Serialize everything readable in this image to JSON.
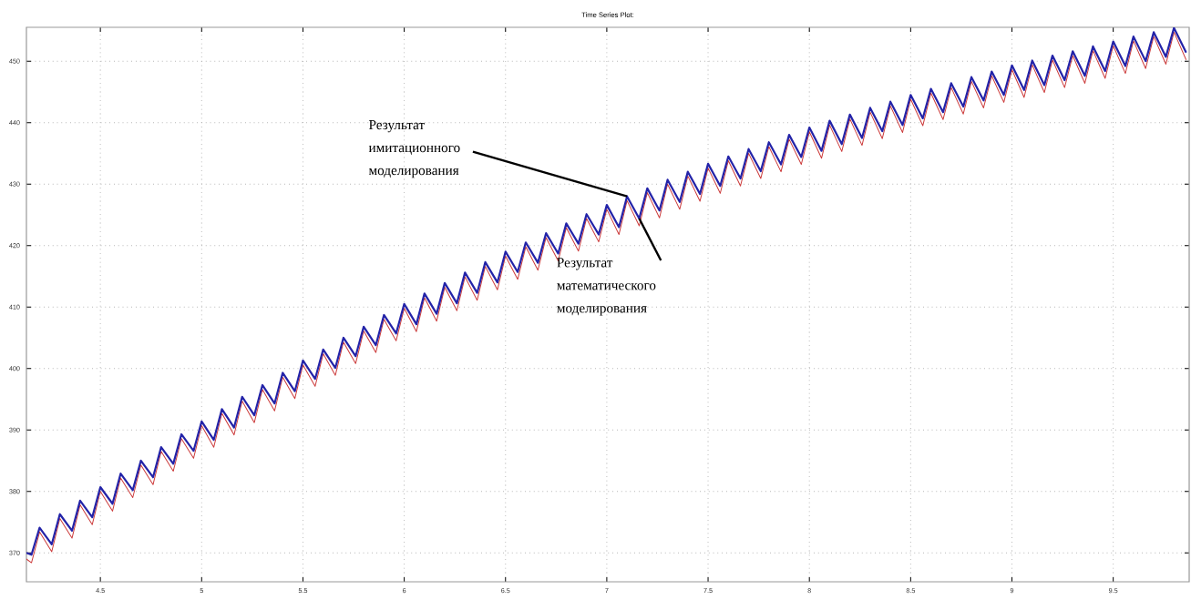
{
  "chart_data": {
    "type": "line",
    "title": "Time Series Plot:",
    "x": [
      4.135,
      4.16,
      4.2,
      4.26,
      4.3,
      4.36,
      4.4,
      4.46,
      4.5,
      4.56,
      4.6,
      4.66,
      4.7,
      4.76,
      4.8,
      4.86,
      4.9,
      4.96,
      5.0,
      5.06,
      5.1,
      5.16,
      5.2,
      5.26,
      5.3,
      5.36,
      5.4,
      5.46,
      5.5,
      5.56,
      5.6,
      5.66,
      5.7,
      5.76,
      5.8,
      5.86,
      5.9,
      5.96,
      6.0,
      6.06,
      6.1,
      6.16,
      6.2,
      6.26,
      6.3,
      6.36,
      6.4,
      6.46,
      6.5,
      6.56,
      6.6,
      6.66,
      6.7,
      6.76,
      6.8,
      6.86,
      6.9,
      6.96,
      7.0,
      7.06,
      7.1,
      7.16,
      7.2,
      7.26,
      7.3,
      7.36,
      7.4,
      7.46,
      7.5,
      7.56,
      7.6,
      7.66,
      7.7,
      7.76,
      7.8,
      7.86,
      7.9,
      7.96,
      8.0,
      8.06,
      8.1,
      8.16,
      8.2,
      8.26,
      8.3,
      8.36,
      8.4,
      8.46,
      8.5,
      8.56,
      8.6,
      8.66,
      8.7,
      8.76,
      8.8,
      8.86,
      8.9,
      8.96,
      9.0,
      9.06,
      9.1,
      9.16,
      9.2,
      9.26,
      9.3,
      9.36,
      9.4,
      9.46,
      9.5,
      9.56,
      9.6,
      9.66,
      9.7,
      9.76,
      9.8,
      9.86
    ],
    "series": [
      {
        "color": "#2323a8",
        "values": [
          370.0,
          369.7,
          374.1,
          371.4,
          376.3,
          373.6,
          378.5,
          375.8,
          380.7,
          378.0,
          382.9,
          380.2,
          385.0,
          382.3,
          387.2,
          384.5,
          389.3,
          386.6,
          391.4,
          388.4,
          393.4,
          390.4,
          395.4,
          392.4,
          397.3,
          394.3,
          399.3,
          396.3,
          401.3,
          398.3,
          403.1,
          400.1,
          405.0,
          402.0,
          406.8,
          403.8,
          408.7,
          405.7,
          410.5,
          407.2,
          412.2,
          408.9,
          413.9,
          410.6,
          415.6,
          412.3,
          417.3,
          414.0,
          419.0,
          415.7,
          420.5,
          417.2,
          422.0,
          418.7,
          423.6,
          420.3,
          425.1,
          421.8,
          426.6,
          423.0,
          428.0,
          424.4,
          429.3,
          425.7,
          430.7,
          427.1,
          432.0,
          428.4,
          433.3,
          429.7,
          434.5,
          430.9,
          435.7,
          432.1,
          436.8,
          433.2,
          438.0,
          434.4,
          439.2,
          435.4,
          440.3,
          436.5,
          441.3,
          437.5,
          442.4,
          438.6,
          443.4,
          439.6,
          444.5,
          440.7,
          445.5,
          441.7,
          446.4,
          442.6,
          447.4,
          443.6,
          448.3,
          444.5,
          449.3,
          445.3,
          450.1,
          446.1,
          450.9,
          446.9,
          451.6,
          447.6,
          452.4,
          448.4,
          453.2,
          449.2,
          454.0,
          450.0,
          454.7,
          450.7,
          455.4,
          451.4
        ]
      },
      {
        "color": "#cc3b3b",
        "values": [
          369.0,
          368.4,
          373.4,
          370.2,
          375.6,
          372.4,
          377.8,
          374.6,
          380.0,
          376.8,
          382.2,
          379.0,
          384.3,
          381.1,
          386.5,
          383.3,
          388.6,
          385.4,
          390.7,
          387.2,
          392.7,
          389.2,
          394.7,
          391.2,
          396.6,
          393.1,
          398.6,
          395.1,
          400.6,
          397.1,
          402.4,
          398.9,
          404.3,
          400.8,
          406.1,
          402.6,
          408.0,
          404.5,
          409.8,
          406.0,
          411.5,
          407.7,
          413.2,
          409.4,
          414.9,
          411.1,
          416.6,
          412.8,
          418.3,
          414.5,
          419.8,
          416.0,
          421.3,
          417.5,
          422.9,
          419.1,
          424.4,
          420.6,
          425.9,
          421.8,
          427.3,
          423.2,
          428.6,
          424.5,
          430.0,
          425.9,
          431.3,
          427.2,
          432.6,
          428.5,
          433.8,
          429.7,
          435.0,
          430.9,
          436.1,
          432.0,
          437.3,
          433.2,
          438.5,
          434.2,
          439.6,
          435.3,
          440.6,
          436.3,
          441.7,
          437.4,
          442.7,
          438.4,
          443.8,
          439.5,
          444.8,
          440.5,
          445.7,
          441.4,
          446.7,
          442.4,
          447.6,
          443.3,
          448.6,
          444.1,
          449.4,
          444.9,
          450.2,
          445.7,
          450.9,
          446.4,
          451.7,
          447.2,
          452.5,
          448.0,
          453.3,
          448.8,
          454.0,
          449.5,
          454.7,
          450.2
        ]
      }
    ],
    "xlim": [
      4.135,
      9.875
    ],
    "ylim": [
      365.3,
      455.5
    ],
    "xticks": [
      4.5,
      5,
      5.5,
      6,
      6.5,
      7,
      7.5,
      8,
      8.5,
      9,
      9.5
    ],
    "yticks": [
      370,
      380,
      390,
      400,
      410,
      420,
      430,
      440,
      450
    ],
    "grid": true,
    "marker": "none",
    "line_style": "solid",
    "annotations": [
      {
        "text": "Результат имитационного моделирования",
        "x": 7.1,
        "y": 428.0
      },
      {
        "text": "Результат математического моделирования",
        "x": 7.16,
        "y": 424.4
      }
    ]
  }
}
